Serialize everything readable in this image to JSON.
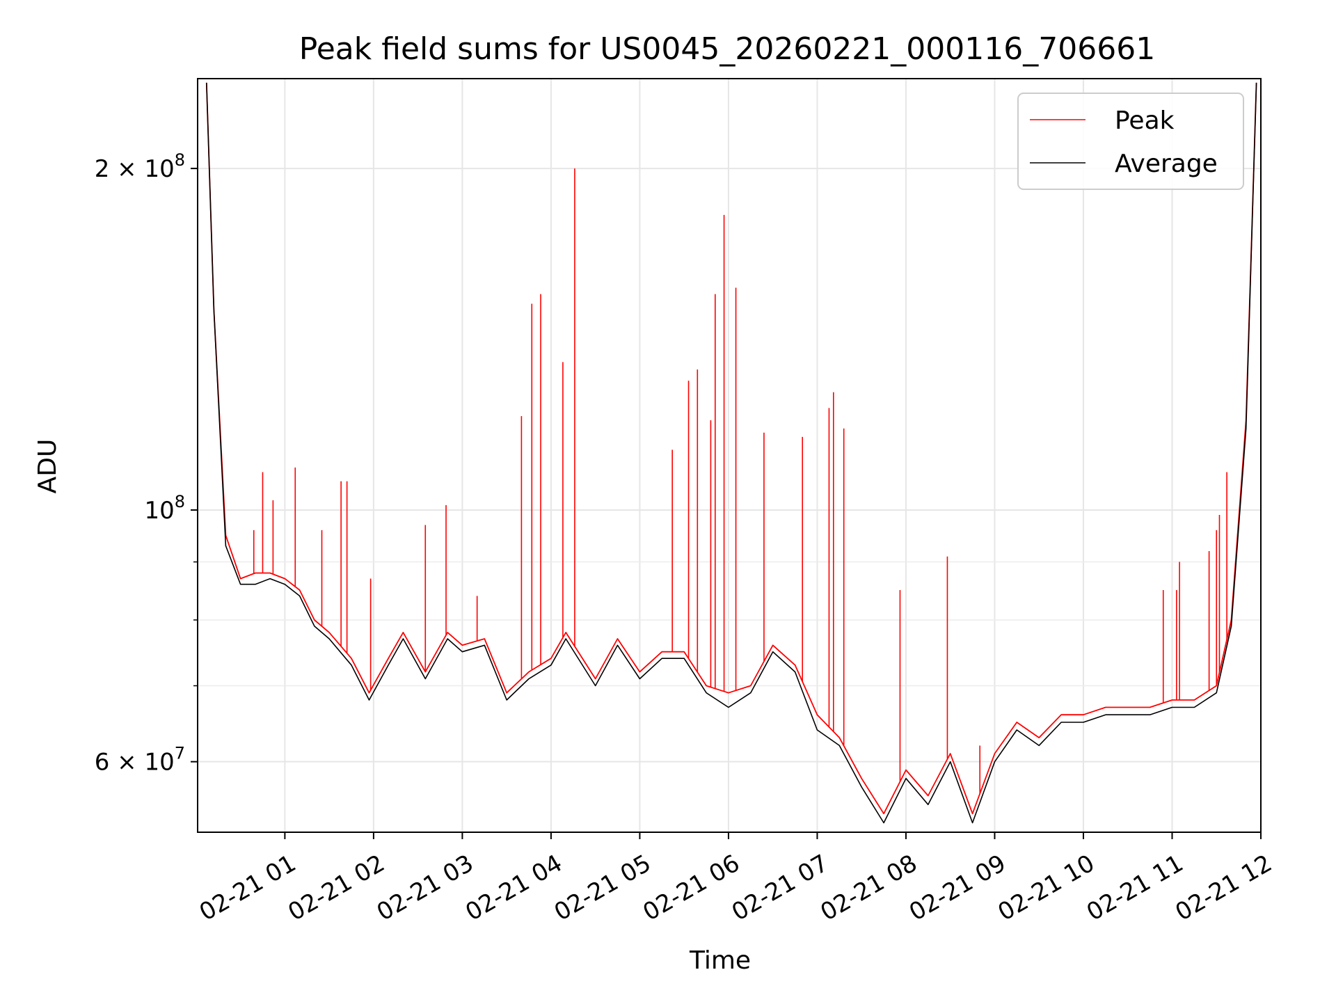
{
  "chart_data": {
    "type": "line",
    "title": "Peak field sums for US0045_20260221_000116_706661",
    "xlabel": "Time",
    "ylabel": "ADU",
    "x_scale": "time",
    "y_scale": "log",
    "xlim": [
      "2026-02-21 00:01",
      "2026-02-21 12:00"
    ],
    "ylim": [
      52000000,
      240000000
    ],
    "x_ticks": [
      "02-21 01",
      "02-21 02",
      "02-21 03",
      "02-21 04",
      "02-21 05",
      "02-21 06",
      "02-21 07",
      "02-21 08",
      "02-21 09",
      "02-21 10",
      "02-21 11",
      "02-21 12"
    ],
    "y_ticks": [
      {
        "value": 60000000,
        "mant": "6",
        "exp": "7"
      },
      {
        "value": 100000000,
        "mant": "",
        "exp": "8"
      },
      {
        "value": 200000000,
        "mant": "2",
        "exp": "8"
      }
    ],
    "y_minor_ticks": [
      70000000,
      80000000,
      90000000
    ],
    "grid": true,
    "legend_position": "top-right",
    "series": [
      {
        "name": "Peak",
        "color": "#ff0000",
        "points": [
          [
            "00:07",
            238000000
          ],
          [
            "00:12",
            150000000
          ],
          [
            "00:20",
            95000000
          ],
          [
            "00:30",
            87000000
          ],
          [
            "00:40",
            88000000
          ],
          [
            "00:50",
            88000000
          ],
          [
            "01:00",
            87000000
          ],
          [
            "01:10",
            85000000
          ],
          [
            "01:20",
            80000000
          ],
          [
            "01:30",
            78000000
          ],
          [
            "01:45",
            74000000
          ],
          [
            "01:57",
            69000000
          ],
          [
            "02:10",
            74000000
          ],
          [
            "02:20",
            78000000
          ],
          [
            "02:35",
            72000000
          ],
          [
            "02:50",
            78000000
          ],
          [
            "03:00",
            76000000
          ],
          [
            "03:15",
            77000000
          ],
          [
            "03:30",
            69000000
          ],
          [
            "03:45",
            72000000
          ],
          [
            "04:00",
            74000000
          ],
          [
            "04:10",
            78000000
          ],
          [
            "04:30",
            71000000
          ],
          [
            "04:45",
            77000000
          ],
          [
            "05:00",
            72000000
          ],
          [
            "05:15",
            75000000
          ],
          [
            "05:30",
            75000000
          ],
          [
            "05:45",
            70000000
          ],
          [
            "06:00",
            69000000
          ],
          [
            "06:15",
            70000000
          ],
          [
            "06:30",
            76000000
          ],
          [
            "06:45",
            73000000
          ],
          [
            "07:00",
            66000000
          ],
          [
            "07:15",
            63000000
          ],
          [
            "07:30",
            58000000
          ],
          [
            "07:45",
            54000000
          ],
          [
            "08:00",
            59000000
          ],
          [
            "08:15",
            56000000
          ],
          [
            "08:30",
            61000000
          ],
          [
            "08:45",
            54000000
          ],
          [
            "09:00",
            61000000
          ],
          [
            "09:15",
            65000000
          ],
          [
            "09:30",
            63000000
          ],
          [
            "09:45",
            66000000
          ],
          [
            "10:00",
            66000000
          ],
          [
            "10:15",
            67000000
          ],
          [
            "10:30",
            67000000
          ],
          [
            "10:45",
            67000000
          ],
          [
            "11:00",
            68000000
          ],
          [
            "11:15",
            68000000
          ],
          [
            "11:30",
            70000000
          ],
          [
            "11:40",
            80000000
          ],
          [
            "11:50",
            120000000
          ],
          [
            "11:57",
            238000000
          ]
        ],
        "spikes": [
          [
            "00:39",
            96000000
          ],
          [
            "00:45",
            108000000
          ],
          [
            "00:52",
            102000000
          ],
          [
            "01:07",
            109000000
          ],
          [
            "01:25",
            96000000
          ],
          [
            "01:38",
            106000000
          ],
          [
            "01:42",
            106000000
          ],
          [
            "01:58",
            87000000
          ],
          [
            "02:35",
            97000000
          ],
          [
            "02:49",
            101000000
          ],
          [
            "03:10",
            84000000
          ],
          [
            "03:40",
            121000000
          ],
          [
            "03:47",
            152000000
          ],
          [
            "03:53",
            155000000
          ],
          [
            "04:08",
            135000000
          ],
          [
            "04:16",
            200000000
          ],
          [
            "05:22",
            113000000
          ],
          [
            "05:33",
            130000000
          ],
          [
            "05:39",
            133000000
          ],
          [
            "05:48",
            120000000
          ],
          [
            "05:51",
            155000000
          ],
          [
            "05:57",
            182000000
          ],
          [
            "06:05",
            157000000
          ],
          [
            "06:24",
            117000000
          ],
          [
            "06:50",
            116000000
          ],
          [
            "07:08",
            123000000
          ],
          [
            "07:11",
            127000000
          ],
          [
            "07:18",
            118000000
          ],
          [
            "07:56",
            85000000
          ],
          [
            "08:28",
            91000000
          ],
          [
            "08:50",
            62000000
          ],
          [
            "10:54",
            85000000
          ],
          [
            "11:03",
            85000000
          ],
          [
            "11:05",
            90000000
          ],
          [
            "11:25",
            92000000
          ],
          [
            "11:30",
            96000000
          ],
          [
            "11:32",
            99000000
          ],
          [
            "11:37",
            108000000
          ]
        ]
      },
      {
        "name": "Average",
        "color": "#000000",
        "points": [
          [
            "00:07",
            238000000
          ],
          [
            "00:12",
            150000000
          ],
          [
            "00:20",
            93000000
          ],
          [
            "00:30",
            86000000
          ],
          [
            "00:40",
            86000000
          ],
          [
            "00:50",
            87000000
          ],
          [
            "01:00",
            86000000
          ],
          [
            "01:10",
            84000000
          ],
          [
            "01:20",
            79000000
          ],
          [
            "01:30",
            77000000
          ],
          [
            "01:45",
            73000000
          ],
          [
            "01:57",
            68000000
          ],
          [
            "02:10",
            73000000
          ],
          [
            "02:20",
            77000000
          ],
          [
            "02:35",
            71000000
          ],
          [
            "02:50",
            77000000
          ],
          [
            "03:00",
            75000000
          ],
          [
            "03:15",
            76000000
          ],
          [
            "03:30",
            68000000
          ],
          [
            "03:45",
            71000000
          ],
          [
            "04:00",
            73000000
          ],
          [
            "04:10",
            77000000
          ],
          [
            "04:30",
            70000000
          ],
          [
            "04:45",
            76000000
          ],
          [
            "05:00",
            71000000
          ],
          [
            "05:15",
            74000000
          ],
          [
            "05:30",
            74000000
          ],
          [
            "05:45",
            69000000
          ],
          [
            "06:00",
            67000000
          ],
          [
            "06:15",
            69000000
          ],
          [
            "06:30",
            75000000
          ],
          [
            "06:45",
            72000000
          ],
          [
            "07:00",
            64000000
          ],
          [
            "07:15",
            62000000
          ],
          [
            "07:30",
            57000000
          ],
          [
            "07:45",
            53000000
          ],
          [
            "08:00",
            58000000
          ],
          [
            "08:15",
            55000000
          ],
          [
            "08:30",
            60000000
          ],
          [
            "08:45",
            53000000
          ],
          [
            "09:00",
            60000000
          ],
          [
            "09:15",
            64000000
          ],
          [
            "09:30",
            62000000
          ],
          [
            "09:45",
            65000000
          ],
          [
            "10:00",
            65000000
          ],
          [
            "10:15",
            66000000
          ],
          [
            "10:30",
            66000000
          ],
          [
            "10:45",
            66000000
          ],
          [
            "11:00",
            67000000
          ],
          [
            "11:15",
            67000000
          ],
          [
            "11:30",
            69000000
          ],
          [
            "11:40",
            79000000
          ],
          [
            "11:50",
            118000000
          ],
          [
            "11:57",
            238000000
          ]
        ]
      }
    ]
  }
}
